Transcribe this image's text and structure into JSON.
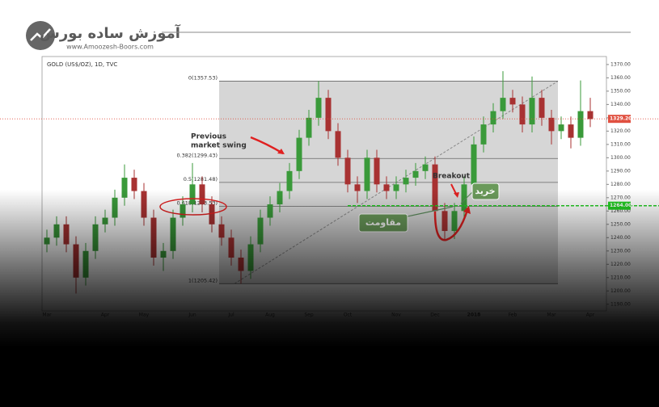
{
  "logo": {
    "title": "آموزش ساده بورس",
    "url": "www.Amoozesh-Boors.com"
  },
  "chart_data": {
    "type": "candlestick",
    "title": "GOLD (US$/OZ), 1D, TVC",
    "categories": [
      "Mar",
      null,
      null,
      null,
      null,
      null,
      "Apr",
      null,
      null,
      null,
      "May",
      null,
      null,
      null,
      null,
      "Jun",
      null,
      null,
      null,
      "Jul",
      null,
      null,
      null,
      "Aug",
      null,
      null,
      null,
      "Sep",
      null,
      null,
      null,
      "Oct",
      null,
      null,
      null,
      null,
      "Nov",
      null,
      null,
      null,
      "Dec",
      null,
      null,
      null,
      "2018",
      null,
      null,
      null,
      "Feb",
      null,
      null,
      null,
      "Mar",
      null,
      null,
      null,
      "Apr"
    ],
    "open": [
      1235,
      1240,
      1250,
      1235,
      1210,
      1230,
      1250,
      1255,
      1270,
      1285,
      1275,
      1255,
      1225,
      1230,
      1255,
      1265,
      1280,
      1265,
      1250,
      1240,
      1225,
      1215,
      1235,
      1255,
      1265,
      1275,
      1290,
      1315,
      1330,
      1345,
      1320,
      1300,
      1280,
      1275,
      1300,
      1280,
      1275,
      1280,
      1285,
      1290,
      1295,
      1260,
      1245,
      1260,
      1280,
      1310,
      1325,
      1335,
      1345,
      1340,
      1325,
      1345,
      1330,
      1320,
      1325,
      1315,
      1335
    ],
    "high": [
      1246,
      1256,
      1256,
      1241,
      1236,
      1256,
      1261,
      1276,
      1295,
      1291,
      1281,
      1261,
      1236,
      1261,
      1271,
      1296,
      1286,
      1271,
      1256,
      1246,
      1231,
      1241,
      1261,
      1271,
      1281,
      1296,
      1321,
      1336,
      1357.53,
      1351,
      1326,
      1306,
      1286,
      1306,
      1306,
      1286,
      1286,
      1291,
      1296,
      1301,
      1301,
      1266,
      1266,
      1286,
      1316,
      1331,
      1341,
      1365,
      1351,
      1346,
      1361,
      1351,
      1336,
      1331,
      1331,
      1358,
      1345
    ],
    "low": [
      1229,
      1234,
      1229,
      1198,
      1204,
      1224,
      1244,
      1249,
      1264,
      1269,
      1249,
      1219,
      1215,
      1224,
      1249,
      1259,
      1259,
      1244,
      1234,
      1219,
      1205.42,
      1209,
      1229,
      1249,
      1259,
      1269,
      1284,
      1309,
      1324,
      1314,
      1294,
      1274,
      1266,
      1269,
      1274,
      1269,
      1269,
      1274,
      1279,
      1284,
      1254,
      1238,
      1239,
      1254,
      1274,
      1304,
      1319,
      1329,
      1334,
      1319,
      1319,
      1324,
      1310,
      1314,
      1307,
      1309,
      1323
    ],
    "close": [
      1240,
      1250,
      1235,
      1210,
      1230,
      1250,
      1255,
      1270,
      1285,
      1275,
      1255,
      1225,
      1230,
      1255,
      1265,
      1280,
      1265,
      1250,
      1240,
      1225,
      1215,
      1235,
      1255,
      1265,
      1275,
      1290,
      1315,
      1330,
      1345,
      1320,
      1300,
      1280,
      1275,
      1300,
      1280,
      1275,
      1280,
      1285,
      1290,
      1295,
      1260,
      1245,
      1260,
      1280,
      1310,
      1325,
      1335,
      1345,
      1340,
      1325,
      1345,
      1330,
      1320,
      1325,
      1315,
      1335,
      1329
    ],
    "up_color": "#3a9a3a",
    "down_color": "#a83232",
    "ylim": [
      1185,
      1376
    ],
    "yticks": [
      {
        "value": 1190,
        "label": "1190.00"
      },
      {
        "value": 1200,
        "label": "1200.00"
      },
      {
        "value": 1210,
        "label": "1210.00"
      },
      {
        "value": 1220,
        "label": "1220.00"
      },
      {
        "value": 1230,
        "label": "1230.00"
      },
      {
        "value": 1240,
        "label": "1240.00"
      },
      {
        "value": 1250,
        "label": "1250.00"
      },
      {
        "value": 1260,
        "label": "1260.00"
      },
      {
        "value": 1270,
        "label": "1270.00"
      },
      {
        "value": 1280,
        "label": "1280.00"
      },
      {
        "value": 1290,
        "label": "1290.00"
      },
      {
        "value": 1300,
        "label": "1300.00"
      },
      {
        "value": 1310,
        "label": "1310.00"
      },
      {
        "value": 1320,
        "label": "1320.00"
      },
      {
        "value": 1330,
        "label": "1330.00"
      },
      {
        "value": 1340,
        "label": "1340.00"
      },
      {
        "value": 1350,
        "label": "1350.00"
      },
      {
        "value": 1360,
        "label": "1360.00"
      },
      {
        "value": 1370,
        "label": "1370.00"
      }
    ],
    "fibonacci": [
      {
        "value": 1357.53,
        "label": "0(1357.53)"
      },
      {
        "value": 1299.43,
        "label": "0.382(1299.43)"
      },
      {
        "value": 1281.48,
        "label": "0.5(1281.48)"
      },
      {
        "value": 1263.53,
        "label": "0.618(1263.53)"
      },
      {
        "value": 1205.42,
        "label": "1(1205.42)"
      }
    ],
    "price_lines": [
      {
        "value": 1329.2,
        "label": "1329.20",
        "color": "#e05040"
      },
      {
        "value": 1264,
        "label": "1264.00",
        "color": "#22cc22"
      }
    ],
    "annotations": {
      "previous_swing": [
        "Previous",
        "market swing"
      ],
      "breakout": "Breakout",
      "buy": "خرید",
      "resistance": "مقاومت"
    }
  }
}
